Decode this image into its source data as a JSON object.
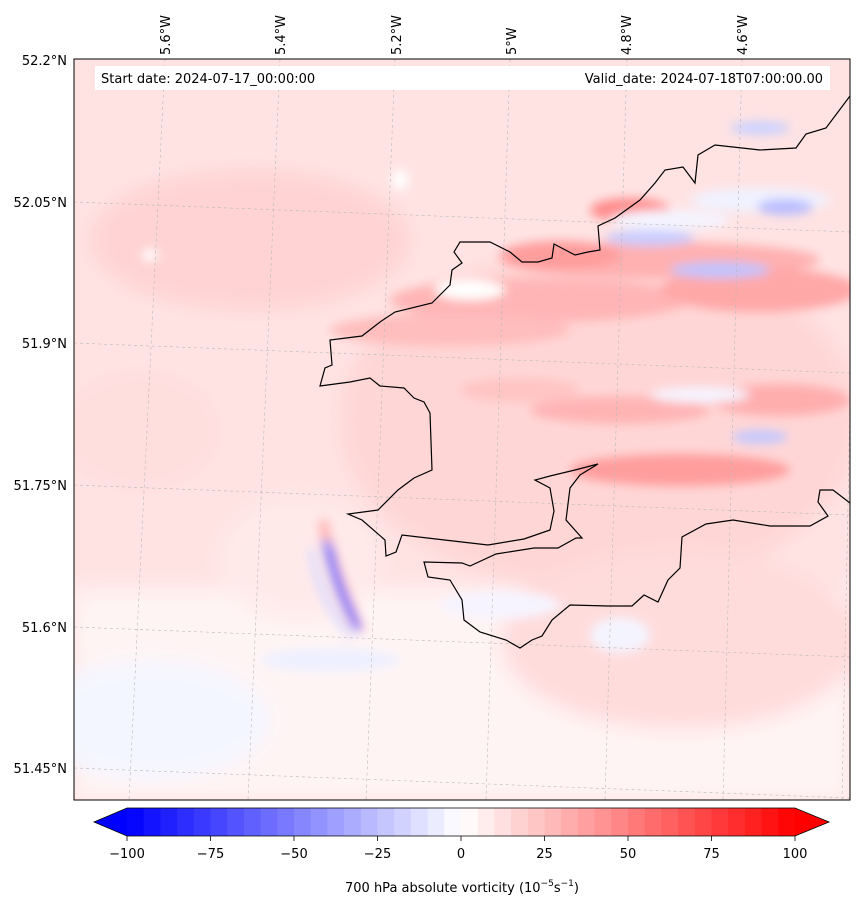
{
  "map": {
    "start_date": "Start date: 2024-07-17_00:00:00",
    "valid_date": "Valid_date: 2024-07-18T07:00:00.00",
    "lon_labels": [
      "5.6°W",
      "5.4°W",
      "5.2°W",
      "5°W",
      "4.8°W",
      "4.6°W"
    ],
    "lat_labels": [
      "52.2°N",
      "52.05°N",
      "51.9°N",
      "51.75°N",
      "51.6°N",
      "51.45°N"
    ],
    "field": "700 hPa absolute vorticity"
  },
  "colorbar": {
    "ticks": [
      "−100",
      "−75",
      "−50",
      "−25",
      "0",
      "25",
      "50",
      "75",
      "100"
    ],
    "label_main": "700 hPa absolute vorticity (10",
    "label_exp1": "−5",
    "label_mid": "s",
    "label_exp2": "−1",
    "label_end": ")",
    "min": -100,
    "max": 100,
    "colors": {
      "low": "#0000ff",
      "mid": "#ffffff",
      "high": "#ff0000"
    }
  }
}
